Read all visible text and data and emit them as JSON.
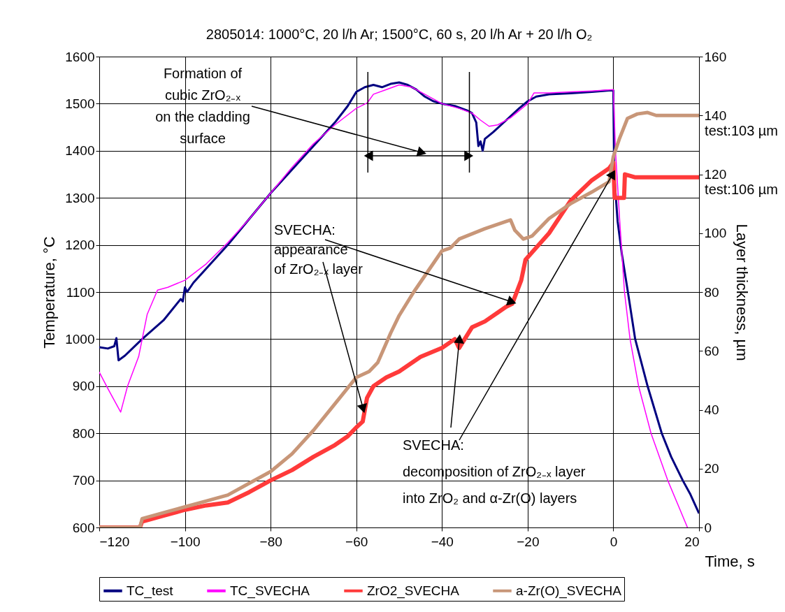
{
  "chart_data": {
    "type": "line",
    "title": "2805014: 1000°C, 20 l/h Ar; 1500°C, 60 s, 20 l/h Ar + 20 l/h O₂",
    "xlabel": "Time, s",
    "ylabel": "Temperature, °C",
    "y2label": "Layer thickness, µm",
    "xlim": [
      -120,
      20
    ],
    "xticks": [
      -120,
      -100,
      -80,
      -60,
      -40,
      -20,
      0,
      20
    ],
    "ylim": [
      600,
      1600
    ],
    "yticks": [
      600,
      700,
      800,
      900,
      1000,
      1100,
      1200,
      1300,
      1400,
      1500,
      1600
    ],
    "y2lim": [
      0,
      160
    ],
    "y2ticks": [
      0,
      20,
      40,
      60,
      80,
      100,
      120,
      140,
      160
    ],
    "ref_lines": [
      {
        "axis": "x",
        "value": -57.3
      },
      {
        "axis": "x",
        "value": -33.6
      }
    ],
    "grid": true,
    "legend": "bottom",
    "marker": "none",
    "line_style": "solid",
    "series": [
      {
        "name": "TC_test",
        "color": "#000080",
        "x": [
          -120,
          -118,
          -116.5,
          -116,
          -115.5,
          -114,
          -110,
          -105,
          -101,
          -100.5,
          -100,
          -99.5,
          -98,
          -95,
          -90,
          -85,
          -80,
          -75,
          -70,
          -65,
          -62,
          -60,
          -58,
          -56,
          -54,
          -52,
          -50,
          -48,
          -46,
          -44,
          -42,
          -40,
          -37,
          -34,
          -33,
          -32,
          -31.5,
          -31,
          -30.5,
          -30,
          -28,
          -25,
          -22,
          -20,
          -18,
          -15,
          -10,
          -5,
          -1,
          0,
          0.2,
          1,
          2,
          3.4,
          5.1,
          8,
          11.3,
          13.5,
          16.2,
          18,
          20
        ],
        "values": [
          983,
          980,
          985,
          1002,
          955,
          965,
          1000,
          1040,
          1085,
          1080,
          1110,
          1100,
          1120,
          1150,
          1200,
          1255,
          1310,
          1360,
          1410,
          1460,
          1495,
          1525,
          1535,
          1540,
          1535,
          1542,
          1545,
          1540,
          1530,
          1515,
          1505,
          1500,
          1495,
          1485,
          1480,
          1460,
          1410,
          1420,
          1400,
          1425,
          1440,
          1465,
          1490,
          1505,
          1515,
          1520,
          1522,
          1525,
          1528,
          1528,
          1350,
          1250,
          1180,
          1100,
          1000,
          900,
          800,
          750,
          700,
          670,
          630
        ]
      },
      {
        "name": "TC_SVECHA",
        "color": "#ff00ff",
        "x": [
          -120,
          -118,
          -115,
          -113.4,
          -110.8,
          -108.8,
          -106.4,
          -104,
          -100,
          -95,
          -90,
          -85,
          -80,
          -75,
          -70,
          -65,
          -60,
          -57.4,
          -56,
          -53,
          -50,
          -47,
          -45,
          -40,
          -36,
          -33,
          -31,
          -29,
          -27,
          -24,
          -20,
          -18.5,
          -15,
          -10,
          -5,
          0,
          0.5,
          1.5,
          2.6,
          3.9,
          5.9,
          8.8,
          12.7,
          15,
          17.3
        ],
        "values": [
          930,
          895,
          845,
          900,
          963,
          1053,
          1104,
          1110,
          1125,
          1160,
          1205,
          1255,
          1310,
          1365,
          1415,
          1455,
          1490,
          1502,
          1520,
          1530,
          1540,
          1535,
          1525,
          1500,
          1490,
          1480,
          1465,
          1452,
          1455,
          1470,
          1500,
          1523,
          1523,
          1525,
          1527,
          1530,
          1400,
          1250,
          1100,
          1000,
          900,
          800,
          700,
          650,
          600
        ]
      },
      {
        "name": "ZrO2_SVECHA",
        "color": "#ff3a3a",
        "axis": "y2",
        "x": [
          -120,
          -110.5,
          -110,
          -105,
          -100,
          -95,
          -90,
          -85,
          -80,
          -75,
          -70,
          -65,
          -62,
          -60,
          -58.5,
          -57.5,
          -56,
          -53,
          -50,
          -45,
          -40,
          -37,
          -36,
          -33,
          -30,
          -27,
          -25,
          -23.6,
          -21.5,
          -20.5,
          -15,
          -10,
          -5,
          -1,
          0,
          0.3,
          2.5,
          2.7,
          5,
          10,
          20
        ],
        "values": [
          0,
          0,
          2,
          4,
          6,
          7.5,
          8.5,
          12,
          16,
          19.5,
          24,
          28,
          31,
          34,
          36,
          44,
          48,
          51,
          53,
          58,
          61,
          64,
          61,
          68,
          70,
          73,
          75,
          76,
          84,
          91,
          100,
          111,
          118,
          122,
          124,
          112,
          112,
          120,
          119,
          119,
          119
        ]
      },
      {
        "name": "a-Zr(O)_SVECHA",
        "color": "#c89678",
        "axis": "y2",
        "x": [
          -120,
          -110.5,
          -110,
          -105,
          -100,
          -95,
          -90,
          -85,
          -80,
          -75,
          -70,
          -65,
          -60,
          -57,
          -55,
          -52,
          -50,
          -46.6,
          -40,
          -38,
          -36,
          -30,
          -25,
          -24,
          -23,
          -21,
          -19,
          -15,
          -10,
          -5,
          -1,
          0,
          1.4,
          3.3,
          5.6,
          8,
          10,
          20
        ],
        "values": [
          0,
          0,
          3,
          5,
          7,
          9,
          11,
          15,
          19,
          25,
          33,
          42,
          51,
          53,
          56,
          66,
          72,
          80,
          94,
          95,
          98,
          101.5,
          104,
          104.5,
          101,
          98,
          99,
          105,
          110,
          114,
          117.5,
          126,
          132,
          139,
          140.5,
          141,
          140,
          140
        ]
      }
    ],
    "annotations": [
      {
        "text": "Formation of\ncubic ZrO₂₋ₓ\non the cladding\nsurface",
        "x": -45,
        "y": 1397
      },
      {
        "text": "SVECHA:\nappearance\nof ZrO₂₋ₓ layer",
        "x": -24,
        "y": 1080
      },
      {
        "text": "SVECHA:\ndecomposition of ZrO₂₋ₓ layer\ninto ZrO₂ and α-Zr(O) layers",
        "x": -0.3,
        "y": 1348
      },
      "test:103 µm",
      "test:106 µm"
    ]
  }
}
